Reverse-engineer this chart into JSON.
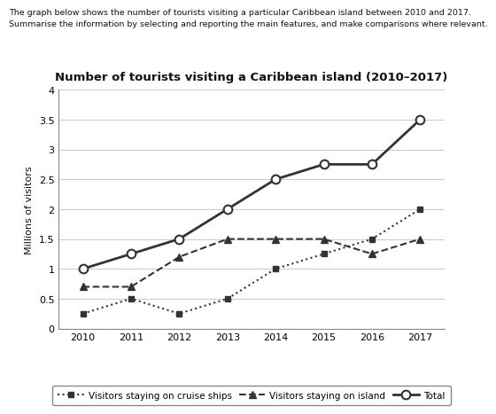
{
  "title": "Number of tourists visiting a Caribbean island (2010–2017)",
  "subtitle_line1": "The graph below shows the number of tourists visiting a particular Caribbean island between 2010 and 2017.",
  "subtitle_line2": "Summarise the information by selecting and reporting the main features, and make comparisons where relevant.",
  "ylabel": "Millions of visitors",
  "years": [
    2010,
    2011,
    2012,
    2013,
    2014,
    2015,
    2016,
    2017
  ],
  "cruise_ships": [
    0.25,
    0.5,
    0.25,
    0.5,
    1.0,
    1.25,
    1.5,
    2.0
  ],
  "on_island": [
    0.7,
    0.7,
    1.2,
    1.5,
    1.5,
    1.5,
    1.25,
    1.5
  ],
  "total": [
    1.0,
    1.25,
    1.5,
    2.0,
    2.5,
    2.75,
    2.75,
    3.5
  ],
  "ylim": [
    0,
    4
  ],
  "yticks": [
    0,
    0.5,
    1.0,
    1.5,
    2.0,
    2.5,
    3.0,
    3.5,
    4.0
  ],
  "color": "#333333",
  "legend_cruise": "Visitors staying on cruise ships",
  "legend_island": "Visitors staying on island",
  "legend_total": "Total"
}
